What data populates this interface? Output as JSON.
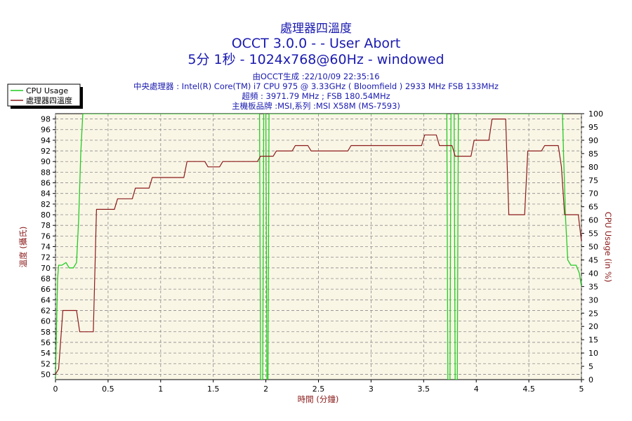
{
  "chart_data": {
    "type": "line",
    "title_lines": [
      "處理器四溫度",
      "OCCT 3.0.0 -  - User Abort",
      "5分 1秒 - 1024x768@60Hz - windowed"
    ],
    "info_lines": [
      "由OCCT生成 :22/10/09 22:35:16",
      "中央處理器 : Intel(R) Core(TM) i7 CPU 975 @ 3.33GHz ( Bloomfield ) 2933 MHz FSB 133MHz",
      "超頻 : 3971.79 MHz ; FSB 180.54MHz",
      "主機板品牌 :MSI,系列 :MSI X58M (MS-7593)"
    ],
    "xlabel": "時間 (分鐘)",
    "ylabel_left": "溫度 (攝氏)",
    "ylabel_right": "CPU Usage (in %)",
    "xlim": [
      0,
      5
    ],
    "ylim_left": [
      49,
      99
    ],
    "ylim_right": [
      0,
      100
    ],
    "x_ticks": [
      "0",
      "0.5",
      "1",
      "1.5",
      "2",
      "2.5",
      "3",
      "3.5",
      "4",
      "4.5",
      "5"
    ],
    "y_left_ticks": [
      "50",
      "52",
      "54",
      "56",
      "58",
      "60",
      "62",
      "64",
      "66",
      "68",
      "70",
      "72",
      "74",
      "76",
      "78",
      "80",
      "82",
      "84",
      "86",
      "88",
      "90",
      "92",
      "94",
      "96",
      "98"
    ],
    "y_right_ticks": [
      "0",
      "5",
      "10",
      "15",
      "20",
      "25",
      "30",
      "35",
      "40",
      "45",
      "50",
      "55",
      "60",
      "65",
      "70",
      "75",
      "80",
      "85",
      "90",
      "95",
      "100"
    ],
    "grid": true,
    "legend_position": "top-left",
    "colors": {
      "background": "#faf6e6",
      "cpu_usage": "#22cc22",
      "temperature": "#8b1a1a",
      "text_title": "#1a1ab0",
      "grid": "#8a8a8a"
    },
    "series": [
      {
        "name": "CPU Usage",
        "axis": "right",
        "points": [
          [
            0,
            0
          ],
          [
            0.01,
            20
          ],
          [
            0.02,
            38
          ],
          [
            0.03,
            43
          ],
          [
            0.06,
            43
          ],
          [
            0.1,
            44
          ],
          [
            0.13,
            42
          ],
          [
            0.17,
            42
          ],
          [
            0.2,
            44
          ],
          [
            0.22,
            60
          ],
          [
            0.24,
            85
          ],
          [
            0.26,
            100
          ],
          [
            1.94,
            100
          ],
          [
            1.95,
            0
          ],
          [
            1.97,
            0
          ],
          [
            1.98,
            100
          ],
          [
            2.0,
            100
          ],
          [
            2.01,
            0
          ],
          [
            2.02,
            0
          ],
          [
            2.03,
            100
          ],
          [
            3.72,
            100
          ],
          [
            3.73,
            0
          ],
          [
            3.75,
            0
          ],
          [
            3.76,
            100
          ],
          [
            3.79,
            100
          ],
          [
            3.8,
            0
          ],
          [
            3.82,
            0
          ],
          [
            3.83,
            100
          ],
          [
            4.82,
            100
          ],
          [
            4.83,
            85
          ],
          [
            4.85,
            60
          ],
          [
            4.87,
            45
          ],
          [
            4.9,
            43
          ],
          [
            4.95,
            43
          ],
          [
            4.98,
            40
          ],
          [
            5.0,
            35
          ]
        ]
      },
      {
        "name": "處理器四溫度",
        "axis": "left",
        "points": [
          [
            0,
            50
          ],
          [
            0.03,
            51
          ],
          [
            0.07,
            62
          ],
          [
            0.2,
            62
          ],
          [
            0.23,
            58
          ],
          [
            0.36,
            58
          ],
          [
            0.39,
            81
          ],
          [
            0.56,
            81
          ],
          [
            0.59,
            83
          ],
          [
            0.73,
            83
          ],
          [
            0.76,
            85
          ],
          [
            0.89,
            85
          ],
          [
            0.92,
            87
          ],
          [
            1.22,
            87
          ],
          [
            1.25,
            90
          ],
          [
            1.42,
            90
          ],
          [
            1.45,
            89
          ],
          [
            1.56,
            89
          ],
          [
            1.59,
            90
          ],
          [
            1.92,
            90
          ],
          [
            1.95,
            91
          ],
          [
            2.07,
            91
          ],
          [
            2.1,
            92
          ],
          [
            2.25,
            92
          ],
          [
            2.28,
            93
          ],
          [
            2.4,
            93
          ],
          [
            2.43,
            92
          ],
          [
            2.78,
            92
          ],
          [
            2.81,
            93
          ],
          [
            3.48,
            93
          ],
          [
            3.51,
            95
          ],
          [
            3.62,
            95
          ],
          [
            3.65,
            93
          ],
          [
            3.77,
            93
          ],
          [
            3.8,
            91
          ],
          [
            3.95,
            91
          ],
          [
            3.98,
            94
          ],
          [
            4.12,
            94
          ],
          [
            4.15,
            98
          ],
          [
            4.28,
            98
          ],
          [
            4.31,
            80
          ],
          [
            4.46,
            80
          ],
          [
            4.49,
            92
          ],
          [
            4.62,
            92
          ],
          [
            4.65,
            93
          ],
          [
            4.78,
            93
          ],
          [
            4.81,
            89
          ],
          [
            4.84,
            80
          ],
          [
            4.97,
            80
          ],
          [
            5.0,
            75
          ]
        ]
      }
    ]
  }
}
